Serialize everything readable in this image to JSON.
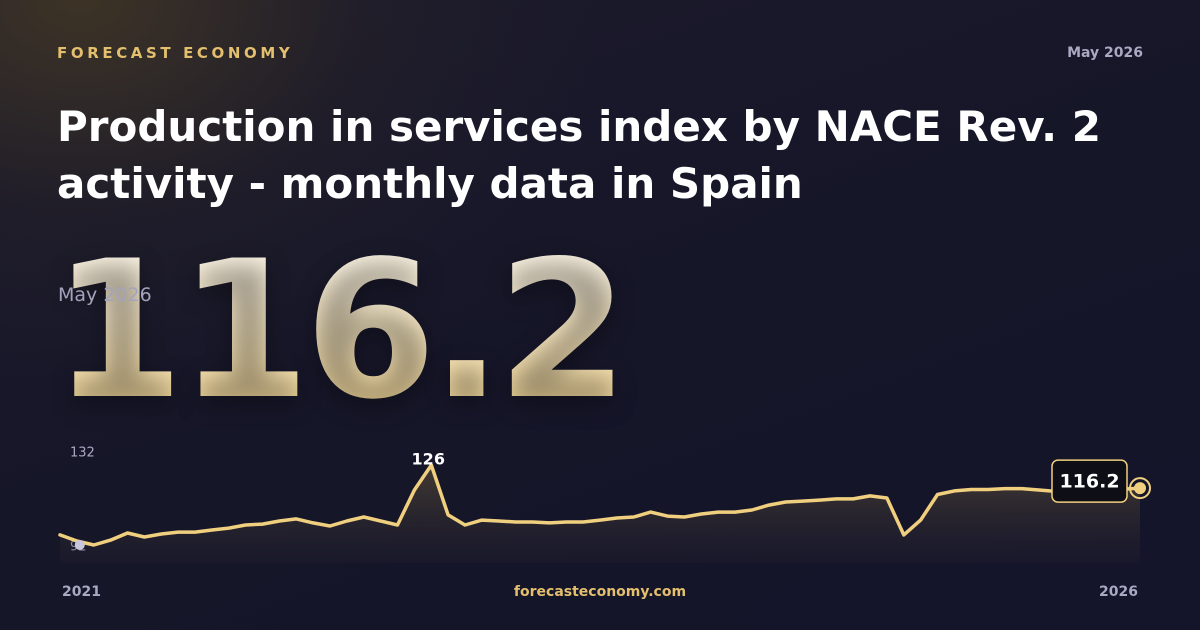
{
  "chart_data": {
    "type": "line",
    "brand": "FORECAST ECONOMY",
    "date": "May 2026",
    "title": "Production in services index by NACE Rev. 2 activity - monthly data in Spain",
    "subtitle": "May 2026",
    "source": "forecasteconomy.com",
    "categories": [
      "2021",
      null,
      null,
      null,
      null,
      null,
      null,
      null,
      null,
      null,
      null,
      null,
      null,
      null,
      null,
      null,
      null,
      null,
      null,
      null,
      null,
      null,
      null,
      null,
      null,
      null,
      null,
      null,
      null,
      null,
      null,
      null,
      null,
      null,
      null,
      null,
      null,
      null,
      null,
      null,
      null,
      null,
      null,
      null,
      null,
      null,
      null,
      null,
      null,
      null,
      null,
      null,
      null,
      null,
      null,
      null,
      null,
      null,
      null,
      null,
      null,
      null,
      null,
      null,
      "2026"
    ],
    "series": [
      {
        "name": "Production in services index",
        "color": "#f0cf7e",
        "values": [
          96.3,
          93.7,
          92,
          94.1,
          97.1,
          95.4,
          96.7,
          97.5,
          97.5,
          98.4,
          99.2,
          100.5,
          100.9,
          102.2,
          103.1,
          101.4,
          100.1,
          102.2,
          103.9,
          102.2,
          100.5,
          115.4,
          126,
          104.8,
          100.5,
          102.6,
          102.2,
          101.8,
          101.8,
          101.4,
          101.8,
          101.8,
          102.6,
          103.5,
          103.9,
          106,
          104.3,
          103.9,
          105.2,
          106,
          106,
          106.9,
          109,
          110.3,
          110.7,
          111.1,
          111.6,
          111.6,
          112.9,
          112,
          96.3,
          102.6,
          113.5,
          115,
          115.6,
          115.6,
          116,
          116,
          115.4,
          114.8,
          114.8,
          115.2,
          115.4,
          115.8,
          116.2
        ]
      }
    ],
    "ylim": [
      92,
      132
    ],
    "yticks": [
      92,
      132
    ],
    "grid": false
  }
}
